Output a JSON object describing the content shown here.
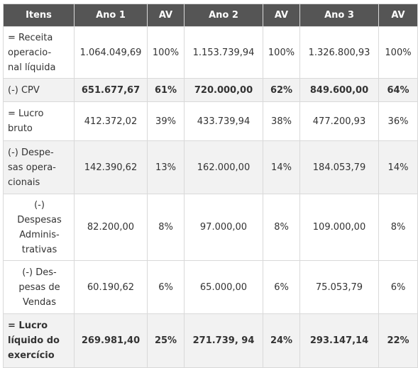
{
  "headers": [
    "Itens",
    "Ano 1",
    "AV",
    "Ano 2",
    "AV",
    "Ano 3",
    "AV"
  ],
  "rows": [
    {
      "item": [
        "= Receita",
        "operacio-",
        "nal líquida"
      ],
      "ano1": "1.064.049,69",
      "av1": "100%",
      "ano2": "1.153.739,94",
      "av2": "100%",
      "ano3": "1.326.800,93",
      "av3": "100%"
    },
    {
      "item": [
        "(-) CPV"
      ],
      "ano1": "651.677,67",
      "av1": "61%",
      "ano2": "720.000,00",
      "av2": "62%",
      "ano3": "849.600,00",
      "av3": "64%"
    },
    {
      "item": [
        "= Lucro",
        "bruto"
      ],
      "ano1": "412.372,02",
      "av1": "39%",
      "ano2": "433.739,94",
      "av2": "38%",
      "ano3": "477.200,93",
      "av3": "36%"
    },
    {
      "item": [
        "(-) Despe-",
        "sas opera-",
        "cionais"
      ],
      "ano1": "142.390,62",
      "av1": "13%",
      "ano2": "162.000,00",
      "av2": "14%",
      "ano3": "184.053,79",
      "av3": "14%"
    },
    {
      "item": [
        "(-)",
        "Despesas",
        "Adminis-",
        "trativas"
      ],
      "ano1": "82.200,00",
      "av1": "8%",
      "ano2": "97.000,00",
      "av2": "8%",
      "ano3": "109.000,00",
      "av3": "8%"
    },
    {
      "item": [
        "(-) Des-",
        "pesas de",
        "Vendas"
      ],
      "ano1": "60.190,62",
      "av1": "6%",
      "ano2": "65.000,00",
      "av2": "6%",
      "ano3": "75.053,79",
      "av3": "6%"
    },
    {
      "item": [
        "= Lucro",
        "líquido do",
        "exercício"
      ],
      "ano1": "269.981,40",
      "av1": "25%",
      "ano2": "271.739, 94",
      "av2": "24%",
      "ano3": "293.147,14",
      "av3": "22%"
    }
  ],
  "colors": {
    "header_bg": "#555555",
    "header_text": "#ffffff",
    "alt_row_bg": "#f2f2f2",
    "border": "#d9d9d9"
  }
}
